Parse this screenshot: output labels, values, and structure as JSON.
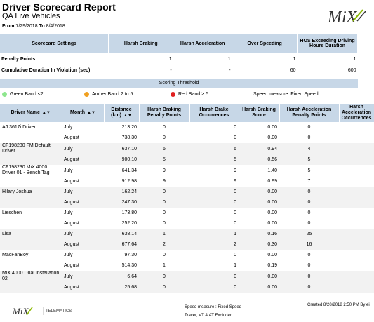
{
  "header": {
    "title": "Driver Scorecard Report",
    "subtitle": "QA Live Vehicles",
    "from_label": "From",
    "from_date": "7/29/2018",
    "to_label": "To",
    "to_date": "8/4/2018",
    "logo_text": "MiX"
  },
  "settings": {
    "columns": [
      "Scorecard Settings",
      "Harsh Braking",
      "Harsh Acceleration",
      "Over Speeding",
      "HOS Exceeding Driving Hours Duration"
    ],
    "rows": [
      {
        "label": "Penalty Points",
        "values": [
          "1",
          "1",
          "1",
          "1"
        ]
      },
      {
        "label": "Cumulative Duration In Violation (sec)",
        "values": [
          "-",
          "-",
          "60",
          "600"
        ]
      }
    ]
  },
  "threshold": {
    "title": "Scoring Threshold",
    "green": "Green Band <2",
    "amber": "Amber Band  2 to 5",
    "red": "Red Band > 5",
    "speed_measure": "Speed measure: Fixed Speed",
    "colors": {
      "green": "#8ee68e",
      "amber": "#f0a020",
      "red": "#e02020"
    }
  },
  "table": {
    "columns": [
      "Driver Name",
      "Month",
      "Distance (km)",
      "Harsh Braking Penalty Points",
      "Harsh Brake Occurrences",
      "Harsh Braking Score",
      "Harsh Acceleration Penalty Points",
      "Harsh Acceleration Occurrences"
    ],
    "rows": [
      {
        "driver": "AJ 3617i Driver",
        "month": "July",
        "distance": "213.20",
        "hb_pp": "0",
        "hb_occ": "0",
        "hb_score": "0.00",
        "ha_pp": "0"
      },
      {
        "driver": "",
        "month": "August",
        "distance": "738.30",
        "hb_pp": "0",
        "hb_occ": "0",
        "hb_score": "0.00",
        "ha_pp": "0"
      },
      {
        "driver": "CF198230 FM Default Driver",
        "month": "July",
        "distance": "637.10",
        "hb_pp": "6",
        "hb_occ": "6",
        "hb_score": "0.94",
        "ha_pp": "4"
      },
      {
        "driver": "",
        "month": "August",
        "distance": "900.10",
        "hb_pp": "5",
        "hb_occ": "5",
        "hb_score": "0.56",
        "ha_pp": "5"
      },
      {
        "driver": "CF198230 MiX 4000 Driver 01 - Bench Tag",
        "month": "July",
        "distance": "641.34",
        "hb_pp": "9",
        "hb_occ": "9",
        "hb_score": "1.40",
        "ha_pp": "5"
      },
      {
        "driver": "",
        "month": "August",
        "distance": "912.98",
        "hb_pp": "9",
        "hb_occ": "9",
        "hb_score": "0.99",
        "ha_pp": "7"
      },
      {
        "driver": "Hilary Joshua",
        "month": "July",
        "distance": "162.24",
        "hb_pp": "0",
        "hb_occ": "0",
        "hb_score": "0.00",
        "ha_pp": "0"
      },
      {
        "driver": "",
        "month": "August",
        "distance": "247.30",
        "hb_pp": "0",
        "hb_occ": "0",
        "hb_score": "0.00",
        "ha_pp": "0"
      },
      {
        "driver": "Lieschen",
        "month": "July",
        "distance": "173.80",
        "hb_pp": "0",
        "hb_occ": "0",
        "hb_score": "0.00",
        "ha_pp": "0"
      },
      {
        "driver": "",
        "month": "August",
        "distance": "252.20",
        "hb_pp": "0",
        "hb_occ": "0",
        "hb_score": "0.00",
        "ha_pp": "0"
      },
      {
        "driver": "Lisa",
        "month": "July",
        "distance": "638.14",
        "hb_pp": "1",
        "hb_occ": "1",
        "hb_score": "0.16",
        "ha_pp": "25"
      },
      {
        "driver": "",
        "month": "August",
        "distance": "677.64",
        "hb_pp": "2",
        "hb_occ": "2",
        "hb_score": "0.30",
        "ha_pp": "16"
      },
      {
        "driver": "MacFanBoy",
        "month": "July",
        "distance": "97.30",
        "hb_pp": "0",
        "hb_occ": "0",
        "hb_score": "0.00",
        "ha_pp": "0"
      },
      {
        "driver": "",
        "month": "August",
        "distance": "514.30",
        "hb_pp": "1",
        "hb_occ": "1",
        "hb_score": "0.19",
        "ha_pp": "0"
      },
      {
        "driver": "MiX 4000 Dual Installation 02",
        "month": "July",
        "distance": "6.64",
        "hb_pp": "0",
        "hb_occ": "0",
        "hb_score": "0.00",
        "ha_pp": "0"
      },
      {
        "driver": "",
        "month": "August",
        "distance": "25.68",
        "hb_pp": "0",
        "hb_occ": "0",
        "hb_score": "0.00",
        "ha_pp": "0"
      }
    ]
  },
  "footer": {
    "logo_text": "MiX",
    "logo_brand": "TELEMATICS",
    "speed_measure": "Speed measure : Fixed Speed",
    "excluded": "Tracer, VT & AT Excluded",
    "created": "Created 8/20/2018 2:50 PM By ei"
  }
}
